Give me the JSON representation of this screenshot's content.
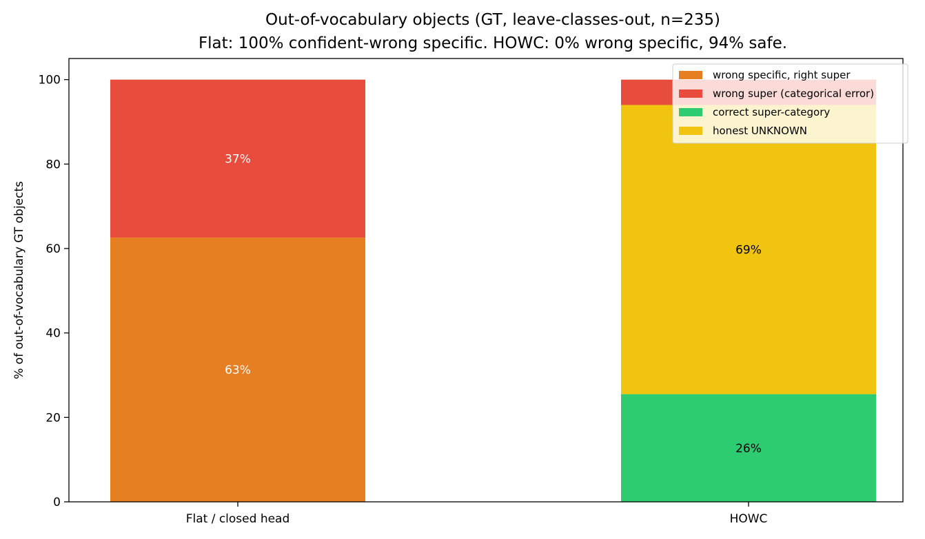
{
  "chart_data": {
    "type": "bar",
    "stacked": true,
    "title": "Out-of-vocabulary objects (GT, leave-classes-out, n=235)",
    "subtitle": "Flat: 100% confident-wrong specific.  HOWC: 0% wrong specific, 94% safe.",
    "xlabel": "",
    "ylabel": "% of out-of-vocabulary GT objects",
    "ylim": [
      0,
      105
    ],
    "yticks": [
      0,
      20,
      40,
      60,
      80,
      100
    ],
    "grid": false,
    "legend_position": "top-right",
    "categories": [
      "Flat / closed head",
      "HOWC"
    ],
    "series": [
      {
        "name": "wrong specific, right super",
        "color": "#e67e22",
        "values": [
          62.6,
          0
        ],
        "labels": [
          "63%",
          ""
        ],
        "label_color": "#ffffff"
      },
      {
        "name": "wrong super (categorical error)",
        "color": "#e74c3c",
        "values": [
          37.4,
          6.0
        ],
        "labels": [
          "37%",
          ""
        ],
        "label_color": "#ffffff"
      },
      {
        "name": "correct super-category",
        "color": "#2ecc71",
        "values": [
          0,
          25.5
        ],
        "labels": [
          "",
          "26%"
        ],
        "label_color": "#000000"
      },
      {
        "name": "honest UNKNOWN",
        "color": "#f1c40f",
        "values": [
          0,
          68.5
        ],
        "labels": [
          "",
          "69%"
        ],
        "label_color": "#000000"
      }
    ],
    "stack_order": [
      [
        "wrong specific, right super",
        "wrong super (categorical error)"
      ],
      [
        "correct super-category",
        "honest UNKNOWN",
        "wrong super (categorical error)"
      ]
    ]
  }
}
